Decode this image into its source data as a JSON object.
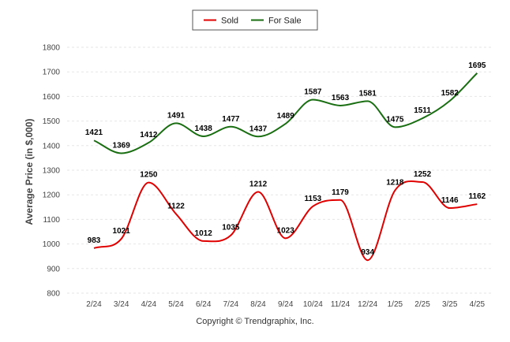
{
  "chart_data": {
    "type": "line",
    "categories": [
      "2/24",
      "3/24",
      "4/24",
      "5/24",
      "6/24",
      "7/24",
      "8/24",
      "9/24",
      "10/24",
      "11/24",
      "12/24",
      "1/25",
      "2/25",
      "3/25",
      "4/25"
    ],
    "series": [
      {
        "name": "Sold",
        "color": "#e00000",
        "values": [
          983,
          1021,
          1250,
          1122,
          1012,
          1035,
          1212,
          1023,
          1153,
          1179,
          934,
          1218,
          1252,
          1146,
          1162
        ]
      },
      {
        "name": "For Sale",
        "color": "#1a6e12",
        "values": [
          1421,
          1369,
          1412,
          1491,
          1438,
          1477,
          1437,
          1489,
          1587,
          1563,
          1581,
          1475,
          1511,
          1582,
          1695
        ]
      }
    ],
    "xlabel": "",
    "ylabel": "Average Price (in $,000)",
    "ylim": [
      800,
      1800
    ],
    "yticks": [
      800,
      900,
      1000,
      1100,
      1200,
      1300,
      1400,
      1500,
      1600,
      1700,
      1800
    ],
    "grid": true,
    "legend_position": "top-center"
  },
  "footer": {
    "copyright": "Copyright © Trendgraphix, Inc."
  }
}
